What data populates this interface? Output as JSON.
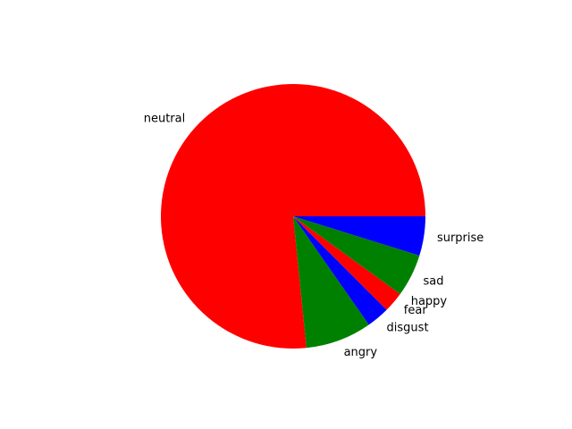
{
  "chart_data": {
    "type": "pie",
    "title": "",
    "start_angle_deg": 0,
    "direction": "counterclockwise",
    "legend": "none",
    "slices": [
      {
        "label": "neutral",
        "value": 76.6,
        "color": "#ff0000"
      },
      {
        "label": "angry",
        "value": 8.1,
        "color": "#008000"
      },
      {
        "label": "disgust",
        "value": 2.8,
        "color": "#0000ff"
      },
      {
        "label": "fear",
        "value": 2.5,
        "color": "#ff0000"
      },
      {
        "label": "happy",
        "value": 0.0,
        "color": "#008000"
      },
      {
        "label": "sad",
        "value": 5.2,
        "color": "#008000"
      },
      {
        "label": "surprise",
        "value": 4.8,
        "color": "#0000ff"
      }
    ]
  }
}
